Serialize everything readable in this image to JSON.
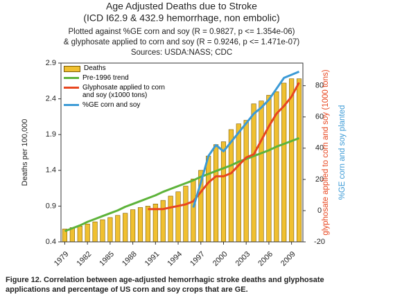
{
  "chart_data": {
    "type": "bar",
    "title": "Age Adjusted Deaths due to Stroke",
    "title2": "(ICD I62.9 & 432.9 hemorrhage, non embolic)",
    "subtitle": [
      "Plotted against %GE corn and soy (R = 0.9827, p <= 1.354e-06)",
      "& glyphosate applied to corn and soy (R = 0.9246, p <= 1.471e-07)",
      "Sources: USDA:NASS; CDC"
    ],
    "y_label": "Deaths per 100,000",
    "y2_labels": [
      {
        "text": "glyphosate applied to corn and soy  (1000 tons)",
        "color": "#e8461f"
      },
      {
        "text": "%GE corn and soy planted",
        "color": "#3b9ad6"
      }
    ],
    "caption": [
      "Figure 12. Correlation between age-adjusted hemorrhagic stroke deaths and glyphosate",
      "applications and percentage of US corn and soy crops that are GE."
    ],
    "categories": [
      "1979",
      null,
      null,
      "1982",
      null,
      null,
      "1985",
      null,
      null,
      "1988",
      null,
      null,
      "1991",
      null,
      null,
      "1994",
      null,
      null,
      "1997",
      null,
      null,
      "2000",
      null,
      null,
      "2003",
      null,
      null,
      "2006",
      null,
      null,
      "2009",
      null
    ],
    "series": [
      {
        "name": "Deaths",
        "type": "bar",
        "color": "#f0c030",
        "values": [
          0.58,
          0.6,
          0.62,
          0.65,
          0.68,
          0.71,
          0.74,
          0.77,
          0.8,
          0.85,
          0.88,
          0.9,
          0.93,
          0.98,
          1.04,
          1.1,
          1.18,
          1.28,
          1.4,
          1.6,
          1.76,
          1.8,
          1.97,
          2.05,
          2.1,
          2.33,
          2.37,
          2.45,
          2.5,
          2.62,
          2.68,
          2.68
        ]
      },
      {
        "name": "Pre-1996 trend",
        "type": "line",
        "color": "#5db33a",
        "values": [
          0.55,
          0.59,
          0.63,
          0.68,
          0.72,
          0.76,
          0.8,
          0.84,
          0.89,
          0.93,
          0.97,
          1.01,
          1.05,
          1.1,
          1.14,
          1.18,
          1.22,
          1.26,
          1.31,
          1.35,
          1.39,
          1.43,
          1.47,
          1.52,
          1.56,
          1.6,
          1.64,
          1.68,
          1.73,
          1.77,
          1.81,
          1.85
        ]
      },
      {
        "name": "Glyphosate applied to corn and soy (x1000 tons)",
        "type": "line",
        "axis": "y2",
        "color": "#e8461f",
        "values": [
          null,
          null,
          null,
          null,
          null,
          null,
          null,
          null,
          null,
          null,
          null,
          1,
          1,
          1,
          2,
          3,
          4,
          6,
          12,
          18,
          22,
          22,
          24,
          29,
          34,
          36,
          45,
          54,
          62,
          67,
          73,
          82
        ]
      },
      {
        "name": "%GE corn and soy",
        "type": "line",
        "axis": "y2",
        "color": "#3b9ad6",
        "values": [
          null,
          null,
          null,
          null,
          null,
          null,
          null,
          null,
          null,
          null,
          null,
          null,
          null,
          null,
          null,
          null,
          null,
          2,
          18,
          35,
          42,
          38,
          44,
          50,
          56,
          62,
          66,
          71,
          78,
          85,
          87,
          89
        ]
      }
    ],
    "ylim": [
      0.4,
      2.9
    ],
    "yticks": [
      0.4,
      0.9,
      1.4,
      1.9,
      2.4,
      2.9
    ],
    "y2lim": [
      -20,
      94.5
    ],
    "y2ticks": [
      -20,
      0,
      20,
      40,
      60,
      80
    ],
    "legend": "upper left"
  }
}
